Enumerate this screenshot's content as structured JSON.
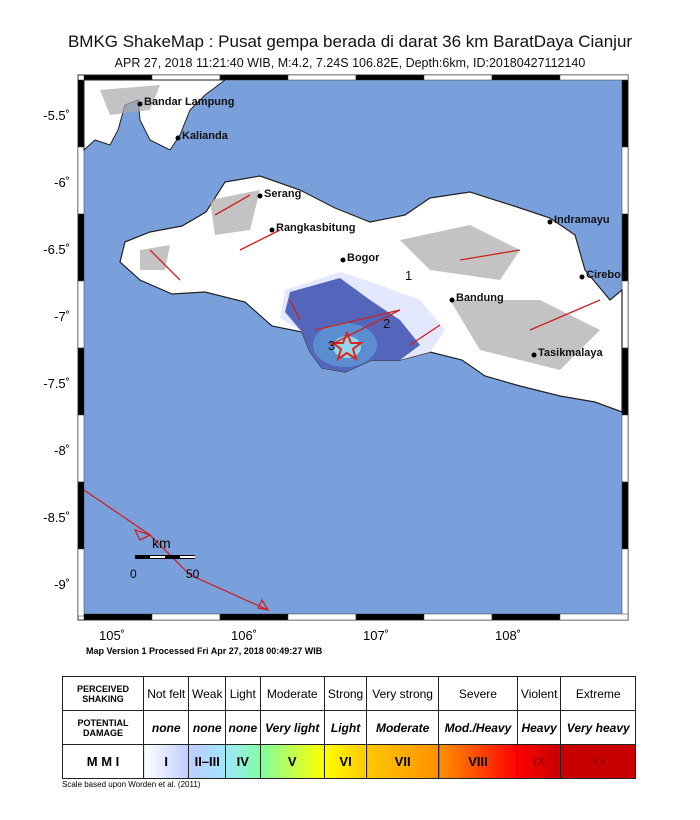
{
  "header": {
    "title": "BMKG ShakeMap : Pusat gempa berada di darat 36 km BaratDaya Cianjur",
    "subtitle": "APR 27, 2018 11:21:40 WIB, M:4.2, 7.24S 106.82E, Depth:6km, ID:20180427112140"
  },
  "map": {
    "lat_ticks": [
      "-5.5˚",
      "-6˚",
      "-6.5˚",
      "-7˚",
      "-7.5˚",
      "-8˚",
      "-8.5˚",
      "-9˚"
    ],
    "lon_ticks": [
      "105˚",
      "106˚",
      "107˚",
      "108˚"
    ],
    "cities": [
      "Bandar Lampung",
      "Kalianda",
      "Serang",
      "Rangkasbitung",
      "Bogor",
      "Indramayu",
      "Cirebon",
      "Bandung",
      "Tasikmalaya"
    ],
    "contour_labels": [
      "1",
      "2",
      "3"
    ],
    "scale": {
      "unit": "km",
      "min": "0",
      "max": "50"
    },
    "epicenter": {
      "lat": -7.24,
      "lon": 106.82,
      "icon": "star-icon"
    },
    "colors": {
      "sea": "#7aa0dc",
      "land": "#ffffff",
      "fault": "#cc2222"
    }
  },
  "processed": "Map Version 1 Processed Fri Apr 27, 2018 00:49:27 WIB",
  "legend": {
    "row_headers": [
      "PERCEIVED SHAKING",
      "POTENTIAL DAMAGE",
      "M M I"
    ],
    "shaking": [
      "Not felt",
      "Weak",
      "Light",
      "Moderate",
      "Strong",
      "Very strong",
      "Severe",
      "Violent",
      "Extreme"
    ],
    "damage": [
      "none",
      "none",
      "none",
      "Very light",
      "Light",
      "Moderate",
      "Mod./Heavy",
      "Heavy",
      "Very heavy"
    ],
    "mmi": [
      "I",
      "II–III",
      "IV",
      "V",
      "VI",
      "VII",
      "VIII",
      "IX",
      "X+"
    ],
    "mmi_colors": [
      "#ffffff",
      "#bfccff",
      "#a0e6ff",
      "#80ffa0",
      "#ffff00",
      "#ffc800",
      "#ff9100",
      "#ff0000",
      "#c80000"
    ]
  },
  "note": "Scale based upon Worden et al. (2011)"
}
